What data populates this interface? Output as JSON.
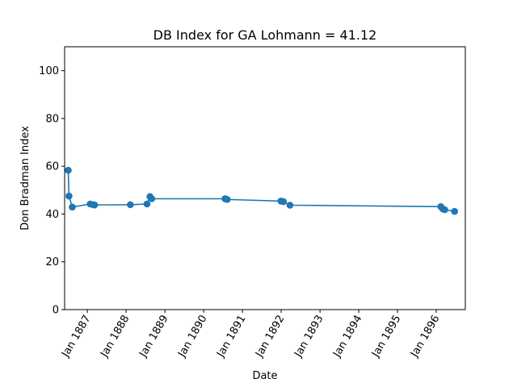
{
  "chart_data": {
    "type": "line",
    "title": "DB Index for GA Lohmann = 41.12",
    "xlabel": "Date",
    "ylabel": "Don Bradman Index",
    "ylim": [
      0,
      110
    ],
    "xlim": [
      "1886-06-01",
      "1896-10-01"
    ],
    "y_ticks": [
      0,
      20,
      40,
      60,
      80,
      100
    ],
    "x_ticks": [
      {
        "date": "1887-01-01",
        "label": "Jan 1887"
      },
      {
        "date": "1888-01-01",
        "label": "Jan 1888"
      },
      {
        "date": "1889-01-01",
        "label": "Jan 1889"
      },
      {
        "date": "1890-01-01",
        "label": "Jan 1890"
      },
      {
        "date": "1891-01-01",
        "label": "Jan 1891"
      },
      {
        "date": "1892-01-01",
        "label": "Jan 1892"
      },
      {
        "date": "1893-01-01",
        "label": "Jan 1893"
      },
      {
        "date": "1894-01-01",
        "label": "Jan 1894"
      },
      {
        "date": "1895-01-01",
        "label": "Jan 1895"
      },
      {
        "date": "1896-01-01",
        "label": "Jan 1896"
      }
    ],
    "grid": false,
    "series": [
      {
        "color": "#1f77b4",
        "points": [
          {
            "x": "1886-07-05",
            "y": 58.3
          },
          {
            "x": "1886-07-12",
            "y": 47.5
          },
          {
            "x": "1886-08-12",
            "y": 42.9
          },
          {
            "x": "1887-01-28",
            "y": 44.2
          },
          {
            "x": "1887-02-25",
            "y": 43.9
          },
          {
            "x": "1887-03-10",
            "y": 43.8
          },
          {
            "x": "1888-02-10",
            "y": 43.9
          },
          {
            "x": "1888-07-16",
            "y": 44.2
          },
          {
            "x": "1888-08-13",
            "y": 47.3
          },
          {
            "x": "1888-08-30",
            "y": 46.4
          },
          {
            "x": "1890-07-21",
            "y": 46.4
          },
          {
            "x": "1890-08-11",
            "y": 46.1
          },
          {
            "x": "1891-12-30",
            "y": 45.4
          },
          {
            "x": "1892-01-22",
            "y": 45.2
          },
          {
            "x": "1892-03-24",
            "y": 43.7
          },
          {
            "x": "1896-02-13",
            "y": 43.1
          },
          {
            "x": "1896-03-02",
            "y": 42.2
          },
          {
            "x": "1896-03-21",
            "y": 41.8
          },
          {
            "x": "1896-06-22",
            "y": 41.1
          }
        ]
      }
    ]
  }
}
